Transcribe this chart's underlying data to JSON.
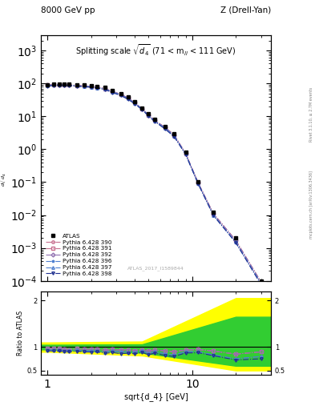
{
  "title_left": "8000 GeV pp",
  "title_right": "Z (Drell-Yan)",
  "plot_title": "Splitting scale $\\sqrt{\\overline{d_4}}$ (71 < m$_{ll}$ < 111 GeV)",
  "ylabel_main": "$\\frac{d\\sigma}{d\\sqrt{d_4}}$ [pb,GeV$^{-1}$]",
  "ylabel_ratio": "Ratio to ATLAS",
  "xlabel": "sqrt{d_4} [GeV]",
  "watermark": "ATLAS_2017_I1589844",
  "right_label1": "Rivet 3.1.10, ≥ 2.7M events",
  "right_label2": "mcplots.cern.ch [arXiv:1306.3436]",
  "atlas_x": [
    1.0,
    1.1,
    1.2,
    1.3,
    1.4,
    1.6,
    1.8,
    2.0,
    2.2,
    2.5,
    2.8,
    3.2,
    3.6,
    4.0,
    4.5,
    5.0,
    5.5,
    6.5,
    7.5,
    9.0,
    11.0,
    14.0,
    20.0,
    30.0
  ],
  "atlas_y": [
    90,
    95,
    95,
    95,
    95,
    90,
    88,
    85,
    80,
    75,
    60,
    50,
    38,
    28,
    18,
    12,
    8.0,
    5.0,
    3.0,
    0.8,
    0.1,
    0.012,
    0.002,
    0.0001
  ],
  "mc_x": [
    1.0,
    1.1,
    1.2,
    1.3,
    1.4,
    1.6,
    1.8,
    2.0,
    2.2,
    2.5,
    2.8,
    3.2,
    3.6,
    4.0,
    4.5,
    5.0,
    5.5,
    6.5,
    7.5,
    9.0,
    11.0,
    14.0,
    20.0,
    30.0
  ],
  "pythia390_y": [
    88,
    92,
    92,
    91,
    90,
    87,
    84,
    81,
    77,
    70,
    57,
    47,
    36,
    26,
    17,
    11,
    7.5,
    4.6,
    2.7,
    0.75,
    0.095,
    0.011,
    0.0017,
    9e-05
  ],
  "pythia391_y": [
    88,
    92,
    92,
    91,
    90,
    87,
    84,
    81,
    77,
    70,
    57,
    47,
    36,
    26,
    17,
    11,
    7.5,
    4.6,
    2.7,
    0.75,
    0.095,
    0.011,
    0.0017,
    9e-05
  ],
  "pythia392_y": [
    88,
    92,
    92,
    91,
    90,
    87,
    84,
    81,
    77,
    70,
    57,
    47,
    36,
    26,
    17,
    11,
    7.5,
    4.6,
    2.7,
    0.75,
    0.095,
    0.011,
    0.0017,
    9e-05
  ],
  "pythia396_y": [
    85,
    89,
    89,
    88,
    88,
    84,
    81,
    78,
    74,
    67,
    55,
    45,
    34,
    25,
    16.5,
    10.5,
    7.2,
    4.3,
    2.5,
    0.72,
    0.09,
    0.01,
    0.0015,
    8e-05
  ],
  "pythia397_y": [
    85,
    89,
    89,
    88,
    88,
    84,
    81,
    78,
    74,
    67,
    55,
    45,
    34,
    25,
    16.5,
    10.5,
    7.2,
    4.3,
    2.5,
    0.72,
    0.09,
    0.01,
    0.0015,
    8e-05
  ],
  "pythia398_y": [
    83,
    87,
    87,
    86,
    86,
    82,
    79,
    76,
    72,
    65,
    53,
    43,
    33,
    24,
    16.0,
    10.0,
    7.0,
    4.1,
    2.4,
    0.7,
    0.088,
    0.0098,
    0.00145,
    7.5e-05
  ],
  "ratio390": [
    0.978,
    0.968,
    0.968,
    0.958,
    0.947,
    0.967,
    0.955,
    0.953,
    0.963,
    0.933,
    0.95,
    0.94,
    0.947,
    0.929,
    0.944,
    0.917,
    0.938,
    0.92,
    0.9,
    0.938,
    0.95,
    0.917,
    0.85,
    0.9
  ],
  "ratio391": [
    0.978,
    0.968,
    0.968,
    0.958,
    0.947,
    0.967,
    0.955,
    0.953,
    0.963,
    0.933,
    0.95,
    0.94,
    0.947,
    0.929,
    0.944,
    0.917,
    0.938,
    0.92,
    0.9,
    0.938,
    0.95,
    0.917,
    0.85,
    0.9
  ],
  "ratio392": [
    0.978,
    0.968,
    0.968,
    0.958,
    0.947,
    0.967,
    0.955,
    0.953,
    0.963,
    0.933,
    0.95,
    0.94,
    0.947,
    0.929,
    0.944,
    0.917,
    0.938,
    0.92,
    0.9,
    0.938,
    0.95,
    0.917,
    0.85,
    0.9
  ],
  "ratio396": [
    0.944,
    0.937,
    0.937,
    0.926,
    0.926,
    0.933,
    0.92,
    0.918,
    0.925,
    0.893,
    0.917,
    0.9,
    0.895,
    0.893,
    0.917,
    0.875,
    0.9,
    0.86,
    0.833,
    0.9,
    0.9,
    0.833,
    0.75,
    0.8
  ],
  "ratio397": [
    0.944,
    0.937,
    0.937,
    0.926,
    0.926,
    0.933,
    0.92,
    0.918,
    0.925,
    0.893,
    0.917,
    0.9,
    0.895,
    0.893,
    0.917,
    0.875,
    0.9,
    0.86,
    0.833,
    0.9,
    0.9,
    0.833,
    0.75,
    0.8
  ],
  "ratio398": [
    0.922,
    0.916,
    0.916,
    0.905,
    0.905,
    0.911,
    0.898,
    0.894,
    0.9,
    0.867,
    0.883,
    0.86,
    0.868,
    0.857,
    0.889,
    0.833,
    0.875,
    0.82,
    0.8,
    0.875,
    0.88,
    0.817,
    0.725,
    0.75
  ],
  "color390": "#c87090",
  "color391": "#c87090",
  "color392": "#9070b0",
  "color396": "#5080d0",
  "color397": "#5080d0",
  "color398": "#203090",
  "ylim_main": [
    0.0001,
    3000.0
  ],
  "ylim_ratio": [
    0.4,
    2.2
  ],
  "xlim": [
    0.9,
    35
  ]
}
